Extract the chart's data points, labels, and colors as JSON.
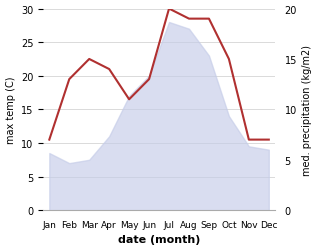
{
  "months": [
    "Jan",
    "Feb",
    "Mar",
    "Apr",
    "May",
    "Jun",
    "Jul",
    "Aug",
    "Sep",
    "Oct",
    "Nov",
    "Dec"
  ],
  "temp": [
    8.5,
    7,
    7.5,
    11,
    17,
    20,
    28,
    27,
    23,
    14,
    9.5,
    9
  ],
  "precip": [
    7,
    13,
    15,
    14,
    11,
    13,
    20,
    19,
    19,
    15,
    7,
    7
  ],
  "temp_fill_color": "#c5cce8",
  "temp_fill_alpha": 0.65,
  "precip_color": "#b03030",
  "xlabel": "date (month)",
  "ylabel_left": "max temp (C)",
  "ylabel_right": "med. precipitation (kg/m2)",
  "ylim_left": [
    0,
    30
  ],
  "ylim_right": [
    0,
    20
  ],
  "yticks_left": [
    0,
    5,
    10,
    15,
    20,
    25,
    30
  ],
  "yticks_right": [
    0,
    5,
    10,
    15,
    20
  ],
  "bg_color": "#ffffff",
  "grid_color": "#cccccc"
}
